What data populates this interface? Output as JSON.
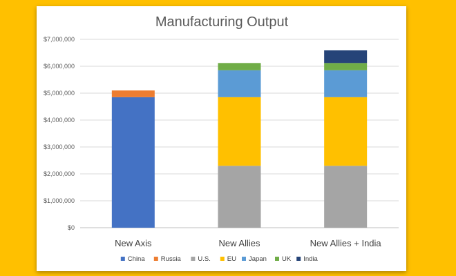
{
  "chart_data": {
    "type": "bar",
    "stacked": true,
    "title": "Manufacturing Output",
    "categories": [
      "New Axis",
      "New Allies",
      "New Allies + India"
    ],
    "series": [
      {
        "name": "China",
        "color": "#4472C4",
        "values": [
          4850000,
          0,
          0
        ]
      },
      {
        "name": "Russia",
        "color": "#ED7D31",
        "values": [
          250000,
          0,
          0
        ]
      },
      {
        "name": "U.S.",
        "color": "#A5A5A5",
        "values": [
          0,
          2300000,
          2300000
        ]
      },
      {
        "name": "EU",
        "color": "#FFC000",
        "values": [
          0,
          2550000,
          2550000
        ]
      },
      {
        "name": "Japan",
        "color": "#5B9BD5",
        "values": [
          0,
          1000000,
          1000000
        ]
      },
      {
        "name": "UK",
        "color": "#70AD47",
        "values": [
          0,
          270000,
          270000
        ]
      },
      {
        "name": "India",
        "color": "#264478",
        "values": [
          0,
          0,
          470000
        ]
      }
    ],
    "ylim": [
      0,
      7000000
    ],
    "yticks": [
      0,
      1000000,
      2000000,
      3000000,
      4000000,
      5000000,
      6000000,
      7000000
    ],
    "ytick_labels": [
      "$0",
      "$1,000,000",
      "$2,000,000",
      "$3,000,000",
      "$4,000,000",
      "$5,000,000",
      "$6,000,000",
      "$7,000,000"
    ],
    "grid": true,
    "legend_position": "bottom"
  }
}
